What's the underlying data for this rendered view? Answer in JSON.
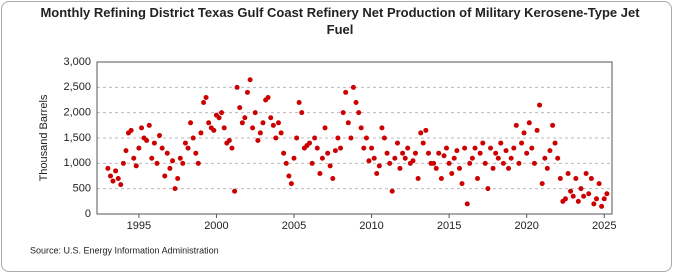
{
  "chart_data": {
    "type": "scatter",
    "title": "Monthly Refining District Texas Gulf Coast Refinery Net Production of Military Kerosene-Type Jet Fuel",
    "y_label": "Thousand Barrels",
    "source": "Source: U.S. Energy Information Administration",
    "color": "#cc0000",
    "grid": true,
    "xlim": [
      1992.3,
      2025.5
    ],
    "xticks": [
      1995,
      2000,
      2005,
      2010,
      2015,
      2020,
      2025
    ],
    "ylim": [
      0,
      3000
    ],
    "yticks": [
      0,
      {
        "value": 500,
        "label": "500"
      },
      {
        "value": 1000,
        "label": "1,000"
      },
      {
        "value": 1500,
        "label": "1,500"
      },
      {
        "value": 2000,
        "label": "2,000"
      },
      {
        "value": 2500,
        "label": "2,500"
      },
      {
        "value": 3000,
        "label": "3,000"
      }
    ],
    "x": [
      1993,
      1993.17,
      1993.33,
      1993.5,
      1993.67,
      1993.83,
      1994,
      1994.17,
      1994.33,
      1994.5,
      1994.67,
      1994.83,
      1995,
      1995.17,
      1995.33,
      1995.5,
      1995.67,
      1995.83,
      1996,
      1996.17,
      1996.33,
      1996.5,
      1996.67,
      1996.83,
      1997,
      1997.17,
      1997.33,
      1997.5,
      1997.67,
      1997.83,
      1998,
      1998.17,
      1998.33,
      1998.5,
      1998.67,
      1998.83,
      1999,
      1999.17,
      1999.33,
      1999.5,
      1999.67,
      1999.83,
      2000,
      2000.17,
      2000.33,
      2000.5,
      2000.67,
      2000.83,
      2001,
      2001.17,
      2001.33,
      2001.5,
      2001.67,
      2001.83,
      2002,
      2002.17,
      2002.33,
      2002.5,
      2002.67,
      2002.83,
      2003,
      2003.17,
      2003.33,
      2003.5,
      2003.67,
      2003.83,
      2004,
      2004.17,
      2004.33,
      2004.5,
      2004.67,
      2004.83,
      2005,
      2005.17,
      2005.33,
      2005.5,
      2005.67,
      2005.83,
      2006,
      2006.17,
      2006.33,
      2006.5,
      2006.67,
      2006.83,
      2007,
      2007.17,
      2007.33,
      2007.5,
      2007.67,
      2007.83,
      2008,
      2008.17,
      2008.33,
      2008.5,
      2008.67,
      2008.83,
      2009,
      2009.17,
      2009.33,
      2009.5,
      2009.67,
      2009.83,
      2010,
      2010.17,
      2010.33,
      2010.5,
      2010.67,
      2010.83,
      2011,
      2011.17,
      2011.33,
      2011.5,
      2011.67,
      2011.83,
      2012,
      2012.17,
      2012.33,
      2012.5,
      2012.67,
      2012.83,
      2013,
      2013.17,
      2013.33,
      2013.5,
      2013.67,
      2013.83,
      2014,
      2014.17,
      2014.33,
      2014.5,
      2014.67,
      2014.83,
      2015,
      2015.17,
      2015.33,
      2015.5,
      2015.67,
      2015.83,
      2016,
      2016.17,
      2016.33,
      2016.5,
      2016.67,
      2016.83,
      2017,
      2017.17,
      2017.33,
      2017.5,
      2017.67,
      2017.83,
      2018,
      2018.17,
      2018.33,
      2018.5,
      2018.67,
      2018.83,
      2019,
      2019.17,
      2019.33,
      2019.5,
      2019.67,
      2019.83,
      2020,
      2020.17,
      2020.33,
      2020.5,
      2020.67,
      2020.83,
      2021,
      2021.17,
      2021.33,
      2021.5,
      2021.67,
      2021.83,
      2022,
      2022.17,
      2022.33,
      2022.5,
      2022.67,
      2022.83,
      2023,
      2023.17,
      2023.33,
      2023.5,
      2023.67,
      2023.83,
      2024,
      2024.17,
      2024.33,
      2024.5,
      2024.67,
      2024.83,
      2025,
      2025.17
    ],
    "values": [
      900,
      750,
      650,
      850,
      700,
      580,
      1000,
      1250,
      1600,
      1650,
      1100,
      950,
      1300,
      1700,
      1500,
      1450,
      1750,
      1100,
      1400,
      1000,
      1550,
      1300,
      750,
      1200,
      900,
      1050,
      500,
      700,
      1100,
      1000,
      1400,
      1300,
      1800,
      1500,
      1200,
      1000,
      1600,
      2200,
      2300,
      1800,
      1700,
      1650,
      1950,
      1900,
      2000,
      1700,
      1400,
      1450,
      1300,
      450,
      2500,
      2100,
      1800,
      1900,
      2400,
      2650,
      1700,
      2000,
      1450,
      1600,
      1800,
      2250,
      2300,
      1900,
      1750,
      1500,
      1800,
      1600,
      1200,
      1000,
      750,
      600,
      1100,
      1500,
      2200,
      2000,
      1300,
      1350,
      1400,
      1000,
      1500,
      1300,
      800,
      1100,
      1700,
      1200,
      950,
      700,
      1250,
      1500,
      1300,
      2000,
      2400,
      1800,
      1500,
      2500,
      2200,
      2000,
      1700,
      1300,
      1500,
      1050,
      1300,
      1100,
      800,
      950,
      1700,
      1500,
      1200,
      1000,
      450,
      1100,
      1400,
      900,
      1200,
      1100,
      1300,
      1000,
      1050,
      1200,
      700,
      1600,
      1400,
      1650,
      1200,
      1000,
      1000,
      900,
      1200,
      700,
      1150,
      1300,
      1000,
      800,
      1100,
      1250,
      900,
      600,
      1300,
      200,
      1000,
      1100,
      1300,
      700,
      1200,
      1400,
      1000,
      500,
      1300,
      900,
      1200,
      1100,
      1400,
      1000,
      1250,
      900,
      1100,
      1300,
      1750,
      1000,
      1400,
      1600,
      1200,
      1800,
      1300,
      1000,
      1650,
      2150,
      600,
      1100,
      900,
      1250,
      1750,
      1400,
      1100,
      700,
      250,
      300,
      800,
      450,
      350,
      700,
      250,
      500,
      350,
      800,
      400,
      700,
      200,
      300,
      600,
      150,
      300,
      400
    ]
  }
}
